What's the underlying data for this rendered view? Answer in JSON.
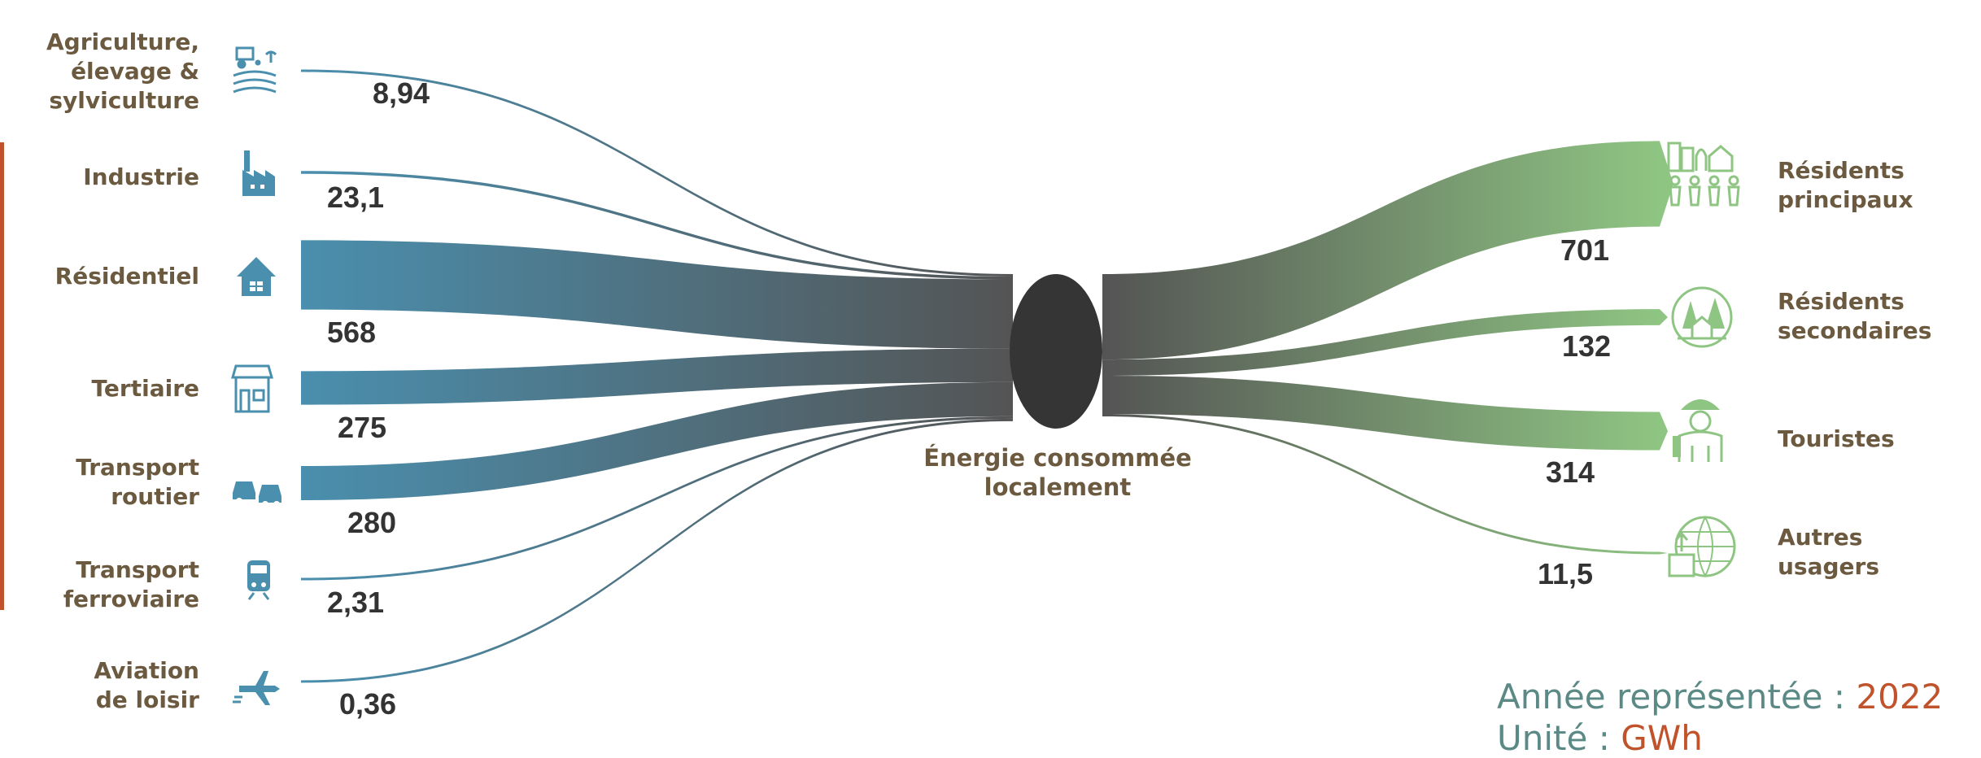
{
  "chart_data": {
    "type": "sankey",
    "center_label": "Énergie consommée\nlocalement",
    "sources": [
      {
        "label": "Agriculture,\nélevage &\nsylviculture",
        "value_label": "8,94",
        "value": 8.94,
        "icon": "tractor-field-icon"
      },
      {
        "label": "Industrie",
        "value_label": "23,1",
        "value": 23.1,
        "icon": "factory-icon"
      },
      {
        "label": "Résidentiel",
        "value_label": "568",
        "value": 568,
        "icon": "house-icon"
      },
      {
        "label": "Tertiaire",
        "value_label": "275",
        "value": 275,
        "icon": "shop-icon"
      },
      {
        "label": "Transport\nroutier",
        "value_label": "280",
        "value": 280,
        "icon": "cars-icon"
      },
      {
        "label": "Transport\nferroviaire",
        "value_label": "2,31",
        "value": 2.31,
        "icon": "train-icon"
      },
      {
        "label": "Aviation\nde loisir",
        "value_label": "0,36",
        "value": 0.36,
        "icon": "plane-icon"
      }
    ],
    "targets": [
      {
        "label": "Résidents\nprincipaux",
        "value_label": "701",
        "value": 701,
        "icon": "city-people-icon"
      },
      {
        "label": "Résidents\nsecondaires",
        "value_label": "132",
        "value": 132,
        "icon": "forest-cabin-icon"
      },
      {
        "label": "Touristes",
        "value_label": "314",
        "value": 314,
        "icon": "tourist-icon"
      },
      {
        "label": "Autres\nusagers",
        "value_label": "11,5",
        "value": 11.5,
        "icon": "globe-box-icon"
      }
    ]
  },
  "footer": {
    "year_label": "Année représentée : ",
    "year_value": "2022",
    "unit_label": "Unité : ",
    "unit_value": "GWh"
  },
  "colors": {
    "source_flow": "#4a8fae",
    "center_node": "#353535",
    "target_flow": "#8fc583",
    "label_text": "#6b5a3f",
    "accent": "#c0532b"
  }
}
